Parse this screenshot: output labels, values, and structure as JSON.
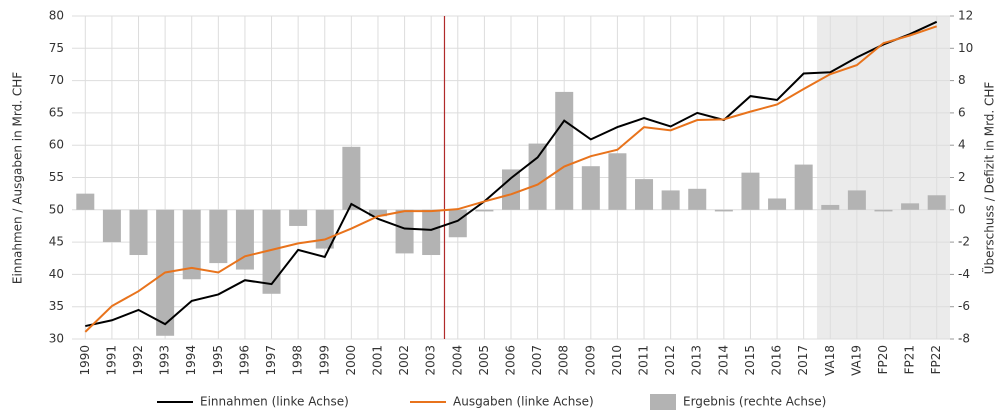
{
  "chart_data": {
    "type": "bar_line",
    "y_label": "Einnahmen / Ausgaben in Mrd. CHF",
    "y2_label": "Überschuss / Defizit in Mrd. CHF",
    "categories": [
      "1990",
      "1991",
      "1992",
      "1993",
      "1994",
      "1995",
      "1996",
      "1997",
      "1998",
      "1999",
      "2000",
      "2001",
      "2002",
      "2003",
      "2004",
      "2005",
      "2006",
      "2007",
      "2008",
      "2009",
      "2010",
      "2011",
      "2012",
      "2013",
      "2014",
      "2015",
      "2016",
      "2017",
      "VA18",
      "VA19",
      "FP20",
      "FP21",
      "FP22"
    ],
    "series": [
      {
        "name": "Einnahmen (linke Achse)",
        "type": "line",
        "color": "#000000",
        "values": [
          32.0,
          32.9,
          34.5,
          32.3,
          35.9,
          36.9,
          39.1,
          38.5,
          43.8,
          42.7,
          50.9,
          48.6,
          47.1,
          46.9,
          48.3,
          51.3,
          54.9,
          58.1,
          63.8,
          60.9,
          62.8,
          64.2,
          62.9,
          65.0,
          63.9,
          67.6,
          67.0,
          71.1,
          71.3,
          73.6,
          75.6,
          77.2,
          79.1
        ]
      },
      {
        "name": "Ausgaben (linke Achse)",
        "type": "line",
        "color": "#e8731c",
        "values": [
          31.1,
          35.1,
          37.4,
          40.3,
          41.0,
          40.3,
          42.8,
          43.8,
          44.8,
          45.4,
          47.1,
          49.0,
          49.8,
          49.8,
          50.1,
          51.3,
          52.4,
          53.9,
          56.7,
          58.3,
          59.3,
          62.8,
          62.3,
          63.9,
          64.0,
          65.2,
          66.3,
          68.7,
          71.0,
          72.4,
          75.8,
          77.0,
          78.4
        ]
      },
      {
        "name": "Ergebnis (rechte Achse)",
        "type": "bar",
        "axis": "y2",
        "color": "#b3b3b3",
        "values": [
          1.0,
          -2.0,
          -2.8,
          -7.8,
          -4.3,
          -3.3,
          -3.7,
          -5.2,
          -1.0,
          -2.4,
          3.9,
          -0.4,
          -2.7,
          -2.8,
          -1.7,
          -0.1,
          2.5,
          4.1,
          7.3,
          2.7,
          3.5,
          1.9,
          1.2,
          1.3,
          -0.1,
          2.3,
          0.7,
          2.8,
          0.3,
          1.2,
          -0.1,
          0.4,
          0.9
        ]
      }
    ],
    "ylim": [
      30,
      80
    ],
    "yticks": [
      30,
      35,
      40,
      45,
      50,
      55,
      60,
      65,
      70,
      75,
      80
    ],
    "y2lim": [
      -8,
      12
    ],
    "y2ticks": [
      -8,
      -6,
      -4,
      -2,
      0,
      2,
      4,
      6,
      8,
      10,
      12
    ],
    "grid": true,
    "legend": "bottom"
  }
}
